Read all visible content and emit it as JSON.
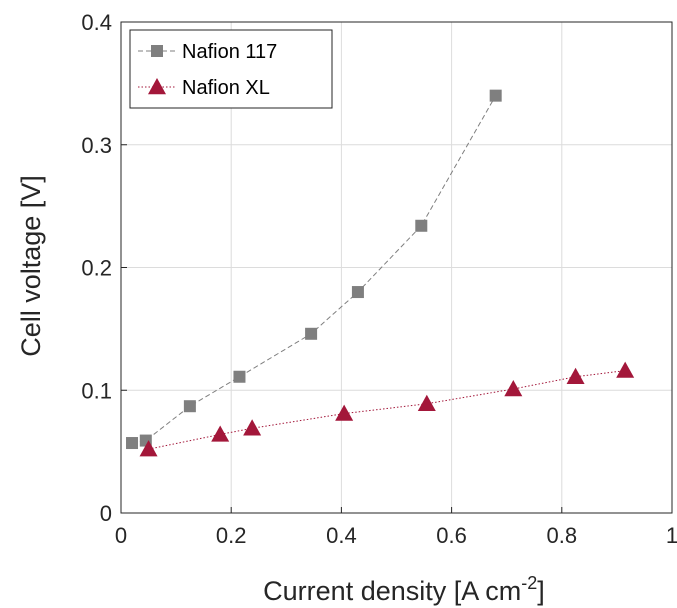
{
  "chart_data": {
    "type": "line",
    "xlabel": "Current density [A cm",
    "xlabel_sup": "-2",
    "xlabel_close": "]",
    "ylabel": "Cell voltage [V]",
    "xlim": [
      0,
      1
    ],
    "ylim": [
      0,
      0.4
    ],
    "xticks": [
      0,
      0.2,
      0.4,
      0.6,
      0.8,
      1
    ],
    "yticks": [
      0,
      0.1,
      0.2,
      0.3,
      0.4
    ],
    "xtick_labels": [
      "0",
      "0.2",
      "0.4",
      "0.6",
      "0.8",
      "1"
    ],
    "ytick_labels": [
      "0",
      "0.1",
      "0.2",
      "0.3",
      "0.4"
    ],
    "grid": true,
    "legend_position": "top-left",
    "series": [
      {
        "name": "Nafion 117",
        "color": "#7f7f7f",
        "marker": "square",
        "line_style": "dashed",
        "x": [
          0.02,
          0.045,
          0.125,
          0.215,
          0.345,
          0.43,
          0.545,
          0.68
        ],
        "y": [
          0.057,
          0.059,
          0.087,
          0.111,
          0.146,
          0.18,
          0.234,
          0.34
        ]
      },
      {
        "name": "Nafion XL",
        "color": "#a3173a",
        "marker": "triangle",
        "line_style": "dotted",
        "x": [
          0.05,
          0.18,
          0.238,
          0.405,
          0.555,
          0.712,
          0.825,
          0.915
        ],
        "y": [
          0.052,
          0.064,
          0.069,
          0.081,
          0.089,
          0.101,
          0.111,
          0.116
        ]
      }
    ]
  }
}
